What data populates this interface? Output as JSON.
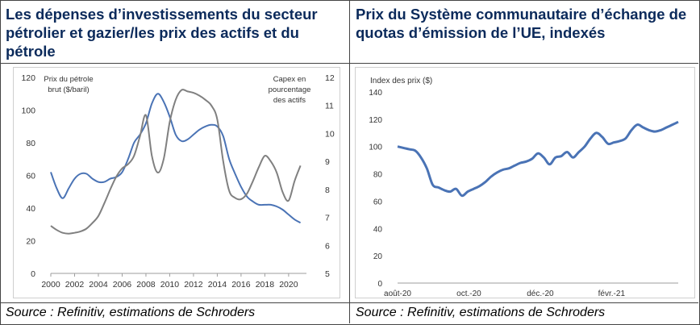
{
  "left_title": "Les dépenses d’investissements du secteur pétrolier et gazier/les prix des actifs et du pétrole",
  "right_title": "Prix du Système communautaire d’échange de quotas d’émission de l’UE, indexés",
  "left_source": "Source : Refinitiv, estimations de Schroders",
  "right_source": "Source : Refinitiv, estimations de Schroders",
  "colors": {
    "title": "#0b2a5b",
    "blue_series": "#4a73b5",
    "grey_series": "#808080",
    "grid": "#d9d9d9"
  },
  "chart_data": [
    {
      "type": "line",
      "title": "",
      "ylabel_left": [
        "Prix du pétrole",
        "brut ($/baril)"
      ],
      "ylabel_right": [
        "Capex en",
        "pourcentage",
        "des actifs"
      ],
      "xlim": [
        2000,
        2021.5
      ],
      "ylim": [
        0,
        120
      ],
      "ylim_right": [
        5,
        12
      ],
      "grid": false,
      "x_ticks": [
        "2000",
        "2002",
        "2004",
        "2006",
        "2008",
        "2010",
        "2012",
        "2014",
        "2016",
        "2018",
        "2020"
      ],
      "y_ticks": [
        "0",
        "20",
        "40",
        "60",
        "80",
        "100",
        "120"
      ],
      "y2_ticks": [
        "5",
        "6",
        "7",
        "8",
        "9",
        "10",
        "11",
        "12"
      ],
      "series": [
        {
          "axis": "left",
          "color": "#4a73b5",
          "x": [
            2000,
            2000.5,
            2001,
            2001.5,
            2002,
            2002.5,
            2003,
            2003.5,
            2004,
            2004.5,
            2005,
            2005.5,
            2006,
            2006.5,
            2007,
            2007.5,
            2008,
            2008.5,
            2009,
            2009.5,
            2010,
            2010.5,
            2011,
            2011.5,
            2012,
            2012.5,
            2013,
            2013.5,
            2014,
            2014.5,
            2015,
            2015.5,
            2016,
            2016.5,
            2017,
            2017.5,
            2018,
            2018.5,
            2019,
            2019.5,
            2020,
            2020.5,
            2021
          ],
          "y": [
            62,
            52,
            46,
            52,
            58,
            61,
            61,
            58,
            56,
            56,
            58,
            59,
            62,
            70,
            80,
            85,
            92,
            104,
            110,
            105,
            96,
            85,
            81,
            82,
            85,
            88,
            90,
            91,
            90,
            84,
            70,
            61,
            53,
            47,
            44,
            42,
            42,
            42,
            41,
            39,
            36,
            33,
            31
          ]
        },
        {
          "axis": "right",
          "color": "#808080",
          "x": [
            2000,
            2000.5,
            2001,
            2001.5,
            2002,
            2002.5,
            2003,
            2003.5,
            2004,
            2004.5,
            2005,
            2005.5,
            2006,
            2006.5,
            2007,
            2007.5,
            2008,
            2008.5,
            2009,
            2009.5,
            2010,
            2010.5,
            2011,
            2011.5,
            2012,
            2012.5,
            2013,
            2013.5,
            2014,
            2014.5,
            2015,
            2015.5,
            2016,
            2016.5,
            2017,
            2017.5,
            2018,
            2018.5,
            2019,
            2019.5,
            2020,
            2020.5,
            2021
          ],
          "y": [
            6.7,
            6.55,
            6.45,
            6.42,
            6.45,
            6.5,
            6.6,
            6.8,
            7.05,
            7.5,
            8.0,
            8.45,
            8.75,
            8.9,
            9.2,
            9.9,
            10.65,
            9.2,
            8.6,
            9.1,
            10.4,
            11.2,
            11.55,
            11.5,
            11.45,
            11.35,
            11.2,
            11.0,
            10.5,
            9.0,
            7.95,
            7.7,
            7.65,
            7.85,
            8.3,
            8.8,
            9.2,
            9.0,
            8.6,
            7.9,
            7.6,
            8.3,
            8.85
          ]
        }
      ]
    },
    {
      "type": "line",
      "title": "",
      "ylabel": "Index des prix ($)",
      "ylim": [
        0,
        140
      ],
      "grid": false,
      "x_ticks": [
        "août-20",
        "oct.-20",
        "déc.-20",
        "févr.-21"
      ],
      "x_tick_positions": [
        0,
        61,
        122,
        183
      ],
      "y_ticks": [
        "0",
        "20",
        "40",
        "60",
        "80",
        "100",
        "120",
        "140"
      ],
      "series": [
        {
          "color": "#4a73b5",
          "x": [
            0,
            5,
            10,
            15,
            20,
            25,
            30,
            35,
            40,
            45,
            50,
            55,
            60,
            65,
            70,
            75,
            80,
            85,
            90,
            95,
            100,
            105,
            110,
            115,
            120,
            125,
            130,
            135,
            140,
            145,
            150,
            155,
            160,
            165,
            170,
            175,
            180,
            185,
            190,
            195,
            200,
            205,
            210,
            215,
            220,
            225,
            230,
            235,
            240
          ],
          "y": [
            100,
            99,
            98,
            97,
            92,
            84,
            72,
            70,
            68,
            67,
            69,
            64,
            67,
            69,
            71,
            74,
            78,
            81,
            83,
            84,
            86,
            88,
            89,
            91,
            95,
            92,
            87,
            92,
            93,
            96,
            92,
            96,
            100,
            106,
            110,
            107,
            102,
            103,
            104,
            106,
            112,
            116,
            114,
            112,
            111,
            112,
            114,
            116,
            118
          ]
        }
      ]
    }
  ]
}
